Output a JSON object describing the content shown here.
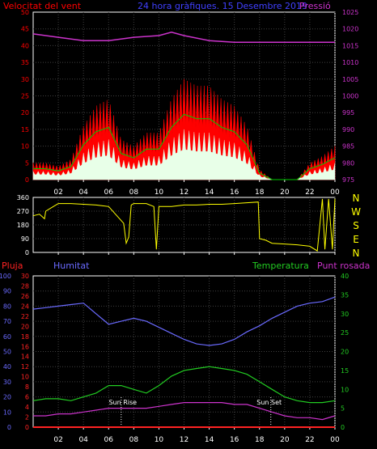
{
  "header": {
    "wind_label": "Velocitat del vent",
    "title": "24 hora gràfiques. 15 Desembre 2019",
    "pressure_label": "Pressió"
  },
  "colors": {
    "wind": "#ff0000",
    "gust": "#ffffff",
    "avg_wind": "#00cc00",
    "pressure": "#cc33cc",
    "direction": "#ffff00",
    "rain": "#ff2222",
    "humidity": "#6a6aff",
    "temperature": "#22cc22",
    "dew_point": "#cc33cc",
    "axis_white": "#ffffff",
    "grid": "#404040"
  },
  "x_ticks": [
    "02",
    "04",
    "06",
    "08",
    "10",
    "12",
    "14",
    "16",
    "18",
    "20",
    "22",
    "00"
  ],
  "compass": [
    "N",
    "W",
    "S",
    "E",
    "N"
  ],
  "bottom_labels": {
    "rain": "Pluja",
    "humidity": "Humitat",
    "temperature": "Temperatura",
    "dew_point": "Punt rosada",
    "sunrise": "Sun Rise",
    "sunset": "Sun Set"
  },
  "chart_data": [
    {
      "type": "area",
      "title": "Velocitat del vent",
      "x_unit": "hour",
      "ylim": [
        0,
        50
      ],
      "y_right_lim": [
        975,
        1025
      ],
      "left_ticks": [
        0,
        5,
        10,
        15,
        20,
        25,
        30,
        35,
        40,
        45,
        50
      ],
      "right_ticks": [
        975,
        980,
        985,
        990,
        995,
        1000,
        1005,
        1010,
        1015,
        1020,
        1025
      ],
      "series": [
        {
          "name": "Velocitat del vent",
          "x": [
            0,
            1,
            2,
            3,
            4,
            5,
            6,
            7,
            8,
            9,
            10,
            11,
            12,
            13,
            14,
            15,
            16,
            17,
            18,
            19,
            20,
            21,
            22,
            23,
            24
          ],
          "values": [
            5,
            5,
            4,
            6,
            16,
            22,
            24,
            12,
            10,
            14,
            14,
            24,
            30,
            28,
            28,
            24,
            22,
            16,
            3,
            0,
            0,
            0,
            5,
            7,
            10
          ]
        },
        {
          "name": "Pressió",
          "axis": "right",
          "x": [
            0,
            2,
            4,
            6,
            8,
            10,
            11,
            12,
            14,
            16,
            18,
            20,
            22,
            24
          ],
          "values": [
            1018.5,
            1017.5,
            1016.5,
            1016.5,
            1017.5,
            1018,
            1019,
            1018,
            1016.5,
            1016,
            1016,
            1016,
            1016,
            1016
          ]
        }
      ]
    },
    {
      "type": "line",
      "x_unit": "hour",
      "ylim": [
        0,
        360
      ],
      "left_ticks": [
        0,
        90,
        180,
        270,
        360
      ],
      "series": [
        {
          "x": [
            0,
            0.5,
            0.9,
            1.0,
            1.4,
            2.0,
            3.0,
            4.0,
            5.0,
            6.0,
            7.2,
            7.4,
            7.6,
            7.8,
            8.0,
            9.0,
            9.6,
            9.8,
            10.0,
            11.0,
            12.0,
            13.0,
            14.0,
            15.0,
            16.0,
            17.0,
            17.9,
            18.0,
            18.5,
            19.0,
            20.0,
            21.0,
            22.0,
            22.6,
            23.0,
            23.2,
            23.5,
            23.8,
            24.0
          ],
          "values": [
            240,
            250,
            220,
            270,
            290,
            320,
            320,
            315,
            310,
            300,
            190,
            60,
            100,
            310,
            320,
            320,
            300,
            20,
            300,
            300,
            310,
            310,
            315,
            315,
            320,
            325,
            330,
            90,
            80,
            60,
            55,
            50,
            40,
            10,
            350,
            20,
            350,
            20,
            350
          ]
        }
      ]
    },
    {
      "type": "line",
      "x_unit": "hour",
      "ylim": [
        0,
        100
      ],
      "left_ticks": [
        0,
        10,
        20,
        30,
        40,
        50,
        60,
        70,
        80,
        90,
        100
      ],
      "rain_ticks": [
        0,
        2,
        4,
        6,
        8,
        10,
        12,
        14,
        16,
        18,
        20,
        22,
        24,
        26,
        28,
        30
      ],
      "right_ticks": [
        0,
        5,
        10,
        15,
        20,
        25,
        30,
        35,
        40
      ],
      "right_lim": [
        0,
        40
      ],
      "sunrise_hour": 7.0,
      "sunset_hour": 18.9,
      "series": [
        {
          "name": "Pluja",
          "axis": "rain",
          "x": [
            0,
            24
          ],
          "values": [
            0,
            0
          ]
        },
        {
          "name": "Humitat",
          "x": [
            0,
            1,
            2,
            3,
            4,
            5,
            6,
            7,
            8,
            9,
            10,
            11,
            12,
            13,
            14,
            15,
            16,
            17,
            18,
            19,
            20,
            21,
            22,
            23,
            24
          ],
          "values": [
            78,
            79,
            80,
            81,
            82,
            75,
            68,
            70,
            72,
            70,
            66,
            62,
            58,
            55,
            54,
            55,
            58,
            63,
            67,
            72,
            76,
            80,
            82,
            83,
            86
          ]
        },
        {
          "name": "Temperatura",
          "axis": "right",
          "x": [
            0,
            1,
            2,
            3,
            4,
            5,
            6,
            7,
            8,
            9,
            10,
            11,
            12,
            13,
            14,
            15,
            16,
            17,
            18,
            19,
            20,
            21,
            22,
            23,
            24
          ],
          "values": [
            7,
            7.5,
            7.5,
            7,
            8,
            9,
            11,
            11,
            10,
            9,
            11,
            13.5,
            15,
            15.5,
            16,
            15.5,
            15,
            14,
            12,
            10,
            8,
            7,
            6.5,
            6.5,
            7
          ]
        },
        {
          "name": "Punt rosada",
          "axis": "right",
          "x": [
            0,
            1,
            2,
            3,
            4,
            5,
            6,
            7,
            8,
            9,
            10,
            11,
            12,
            13,
            14,
            15,
            16,
            17,
            18,
            19,
            20,
            21,
            22,
            23,
            24
          ],
          "values": [
            3,
            3,
            3.5,
            3.5,
            4,
            4.5,
            5,
            5,
            5,
            5,
            5.5,
            6,
            6.5,
            6.5,
            6.5,
            6.5,
            6,
            6,
            5,
            4,
            3,
            2.5,
            2.5,
            2,
            3
          ]
        }
      ]
    }
  ]
}
